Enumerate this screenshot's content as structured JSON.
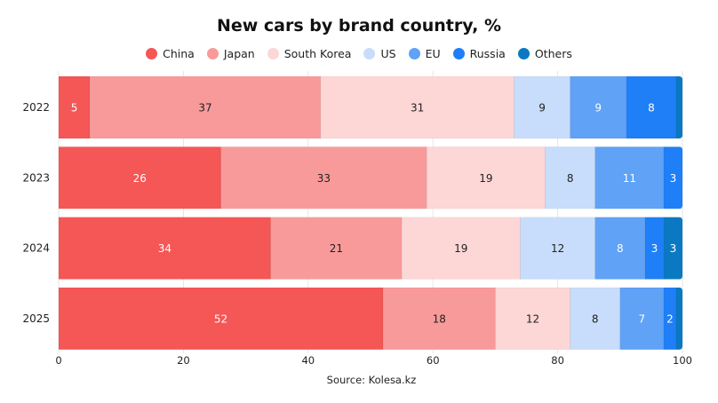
{
  "chart_data": {
    "type": "bar",
    "orientation": "horizontal",
    "stacked": true,
    "title": "New cars by brand country, %",
    "source": "Source: Kolesa.kz",
    "categories": [
      "2022",
      "2023",
      "2024",
      "2025"
    ],
    "xlim": [
      0,
      100
    ],
    "xticks": [
      "0",
      "20",
      "40",
      "60",
      "80",
      "100"
    ],
    "grid": true,
    "legend_position": "top",
    "series": [
      {
        "name": "China",
        "color": "#f55656",
        "label_color": "#ffffff",
        "values": [
          5,
          26,
          34,
          52
        ]
      },
      {
        "name": "Japan",
        "color": "#f99a9a",
        "label_color": "#222222",
        "values": [
          37,
          33,
          21,
          18
        ]
      },
      {
        "name": "South Korea",
        "color": "#fdd6d6",
        "label_color": "#222222",
        "values": [
          31,
          19,
          19,
          12
        ]
      },
      {
        "name": "US",
        "color": "#c7ddfb",
        "label_color": "#222222",
        "values": [
          9,
          8,
          12,
          8
        ]
      },
      {
        "name": "EU",
        "color": "#5fa2f6",
        "label_color": "#ffffff",
        "values": [
          9,
          11,
          8,
          7
        ]
      },
      {
        "name": "Russia",
        "color": "#1f7ff7",
        "label_color": "#ffffff",
        "values": [
          8,
          3,
          3,
          2
        ]
      },
      {
        "name": "Others",
        "color": "#0b79c2",
        "label_color": "#ffffff",
        "values": [
          1,
          0,
          3,
          1
        ]
      }
    ]
  }
}
